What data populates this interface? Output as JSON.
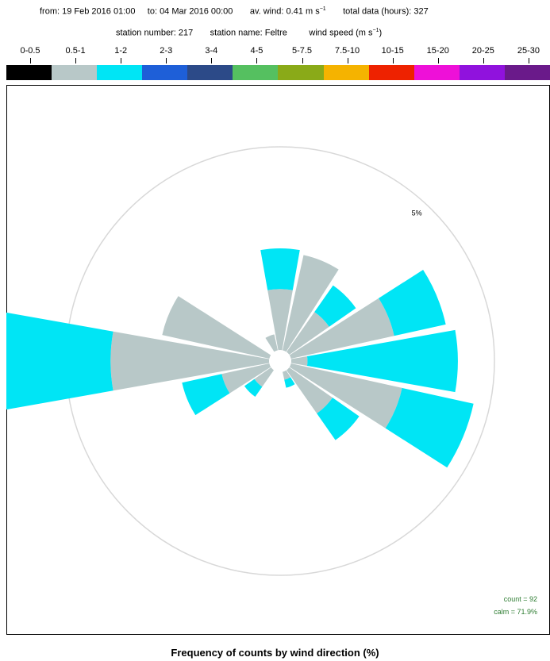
{
  "header": {
    "from_label": "from:",
    "from_value": "19 Feb 2016 01:00",
    "to_label": "to:",
    "to_value": "04 Mar 2016  00:00",
    "avwind_label": "av. wind:",
    "avwind_value": "0.41",
    "avwind_unit": "m s",
    "avwind_exp": "−1",
    "total_label": "total data (hours):",
    "total_value": "327",
    "station_number_label": "station number:",
    "station_number": "217",
    "station_name_label": "station name:",
    "station_name": "Feltre",
    "windspeed_label": "wind speed (m s",
    "windspeed_exp": "−1",
    "windspeed_close": ")"
  },
  "bins": [
    {
      "label": "0-0.5",
      "color": "#000000"
    },
    {
      "label": "0.5-1",
      "color": "#b8c8c8"
    },
    {
      "label": "1-2",
      "color": "#00e5f5"
    },
    {
      "label": "2-3",
      "color": "#1e5fd8"
    },
    {
      "label": "3-4",
      "color": "#2c4a88"
    },
    {
      "label": "4-5",
      "color": "#55c060"
    },
    {
      "label": "5-7.5",
      "color": "#8aaa18"
    },
    {
      "label": "7.5-10",
      "color": "#f5b300"
    },
    {
      "label": "10-15",
      "color": "#ee2200"
    },
    {
      "label": "15-20",
      "color": "#ee10d8"
    },
    {
      "label": "20-25",
      "color": "#9012dd"
    },
    {
      "label": "25-30",
      "color": "#6a1a8a"
    }
  ],
  "chart_data": {
    "type": "polar-bar",
    "title": "Frequency of counts by wind direction (%)",
    "ring_label": "5%",
    "ring_value": 5,
    "count_text": "count = 92",
    "calm_text": "calm = 71.9%",
    "sectors_deg": 22.5,
    "series_colors": [
      "#b8c8c8",
      "#00e5f5"
    ],
    "directions": [
      0,
      22.5,
      45,
      67.5,
      90,
      112.5,
      135,
      157.5,
      180,
      202.5,
      225,
      247.5,
      270,
      292.5,
      315,
      337.5
    ],
    "segments": [
      {
        "dir": 0,
        "values": [
          1.5,
          1.0
        ]
      },
      {
        "dir": 22.5,
        "values": [
          2.4,
          0.0
        ]
      },
      {
        "dir": 45,
        "values": [
          1.2,
          0.8
        ]
      },
      {
        "dir": 67.5,
        "values": [
          2.6,
          1.3
        ]
      },
      {
        "dir": 90,
        "values": [
          0.4,
          3.7
        ]
      },
      {
        "dir": 112.5,
        "values": [
          2.8,
          1.8
        ]
      },
      {
        "dir": 135,
        "values": [
          1.3,
          0.8
        ]
      },
      {
        "dir": 157.5,
        "values": [
          0.2,
          0.2
        ]
      },
      {
        "dir": 180,
        "values": [
          0.0,
          0.0
        ]
      },
      {
        "dir": 202.5,
        "values": [
          0.0,
          0.0
        ]
      },
      {
        "dir": 225,
        "values": [
          0.5,
          0.3
        ]
      },
      {
        "dir": 247.5,
        "values": [
          1.2,
          1.0
        ]
      },
      {
        "dir": 270,
        "values": [
          3.9,
          3.0
        ]
      },
      {
        "dir": 292.5,
        "values": [
          2.7,
          0.0
        ]
      },
      {
        "dir": 315,
        "values": [
          0.0,
          0.0
        ]
      },
      {
        "dir": 337.5,
        "values": [
          0.4,
          0.0
        ]
      }
    ]
  }
}
